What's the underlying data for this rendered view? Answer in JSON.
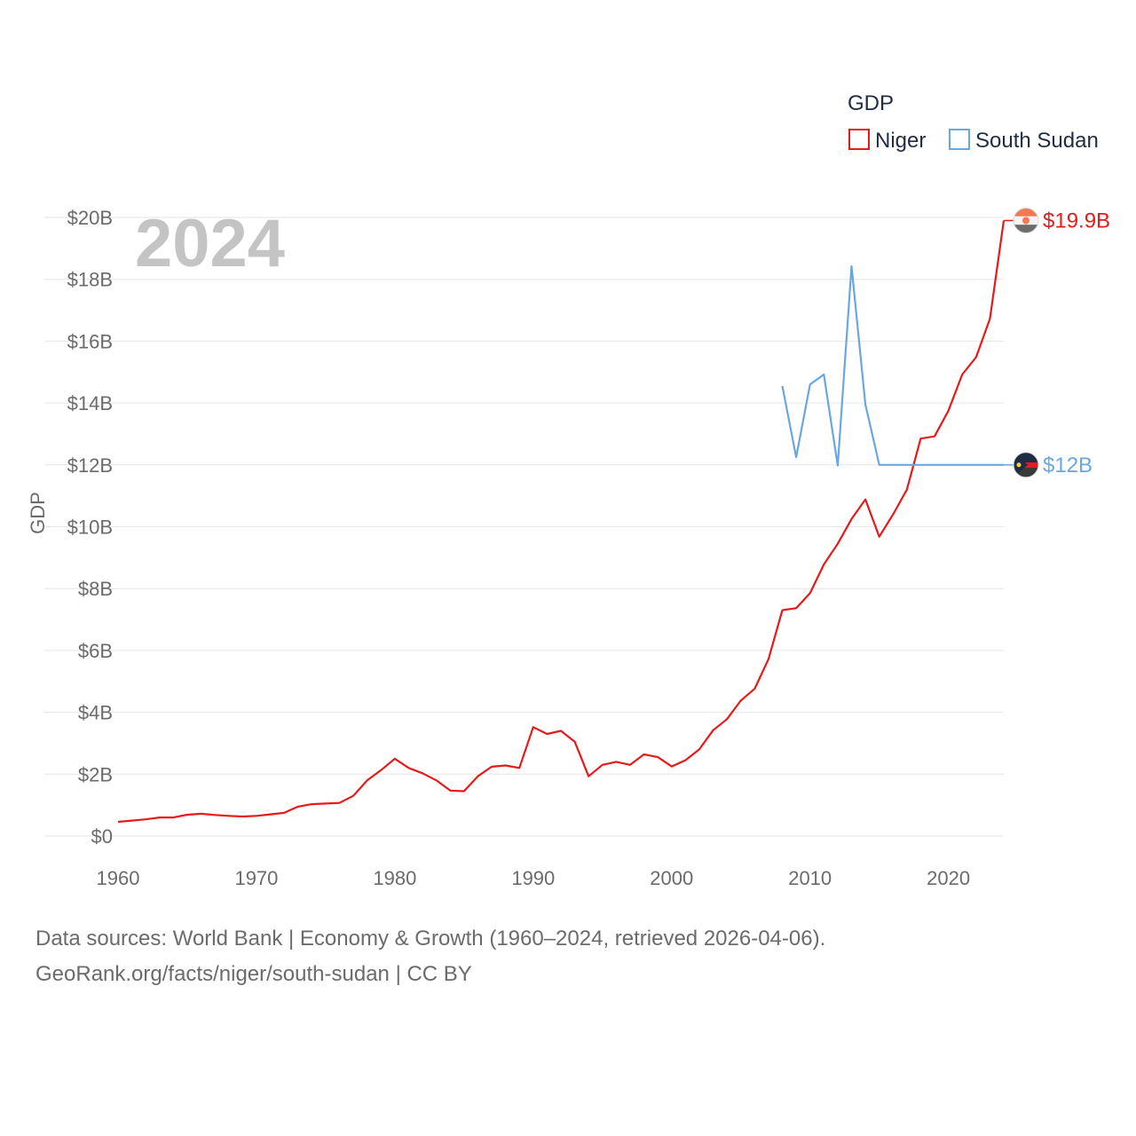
{
  "chart_data": {
    "type": "line",
    "ylabel": "GDP",
    "legend_title": "GDP",
    "legend_position": "top-right",
    "year_label": "2024",
    "ylim": [
      0,
      20000000000
    ],
    "xlim": [
      1960,
      2024
    ],
    "y_ticks": [
      {
        "value": 0,
        "label": "$0"
      },
      {
        "value": 2000000000,
        "label": "$2B"
      },
      {
        "value": 4000000000,
        "label": "$4B"
      },
      {
        "value": 6000000000,
        "label": "$6B"
      },
      {
        "value": 8000000000,
        "label": "$8B"
      },
      {
        "value": 10000000000,
        "label": "$10B"
      },
      {
        "value": 12000000000,
        "label": "$12B"
      },
      {
        "value": 14000000000,
        "label": "$14B"
      },
      {
        "value": 16000000000,
        "label": "$16B"
      },
      {
        "value": 18000000000,
        "label": "$18B"
      },
      {
        "value": 20000000000,
        "label": "$20B"
      }
    ],
    "x_ticks": [
      {
        "value": 1960,
        "label": "1960"
      },
      {
        "value": 1970,
        "label": "1970"
      },
      {
        "value": 1980,
        "label": "1980"
      },
      {
        "value": 1990,
        "label": "1990"
      },
      {
        "value": 2000,
        "label": "2000"
      },
      {
        "value": 2010,
        "label": "2010"
      },
      {
        "value": 2020,
        "label": "2020"
      }
    ],
    "series": [
      {
        "name": "Niger",
        "color": "#e8191b",
        "end_label": "$19.9B",
        "flag": "niger-flag",
        "points": [
          [
            1960,
            0.46
          ],
          [
            1961,
            0.5
          ],
          [
            1962,
            0.54
          ],
          [
            1963,
            0.6
          ],
          [
            1964,
            0.6
          ],
          [
            1965,
            0.69
          ],
          [
            1966,
            0.72
          ],
          [
            1967,
            0.68
          ],
          [
            1968,
            0.65
          ],
          [
            1969,
            0.63
          ],
          [
            1970,
            0.65
          ],
          [
            1971,
            0.7
          ],
          [
            1972,
            0.75
          ],
          [
            1973,
            0.95
          ],
          [
            1974,
            1.03
          ],
          [
            1975,
            1.05
          ],
          [
            1976,
            1.07
          ],
          [
            1977,
            1.3
          ],
          [
            1978,
            1.8
          ],
          [
            1979,
            2.13
          ],
          [
            1980,
            2.5
          ],
          [
            1981,
            2.2
          ],
          [
            1982,
            2.03
          ],
          [
            1983,
            1.8
          ],
          [
            1984,
            1.47
          ],
          [
            1985,
            1.45
          ],
          [
            1986,
            1.93
          ],
          [
            1987,
            2.24
          ],
          [
            1988,
            2.28
          ],
          [
            1989,
            2.2
          ],
          [
            1990,
            3.52
          ],
          [
            1991,
            3.3
          ],
          [
            1992,
            3.4
          ],
          [
            1993,
            3.05
          ],
          [
            1994,
            1.93
          ],
          [
            1995,
            2.3
          ],
          [
            1996,
            2.4
          ],
          [
            1997,
            2.3
          ],
          [
            1998,
            2.64
          ],
          [
            1999,
            2.55
          ],
          [
            2000,
            2.25
          ],
          [
            2001,
            2.45
          ],
          [
            2002,
            2.8
          ],
          [
            2003,
            3.42
          ],
          [
            2004,
            3.78
          ],
          [
            2005,
            4.38
          ],
          [
            2006,
            4.76
          ],
          [
            2007,
            5.72
          ],
          [
            2008,
            7.3
          ],
          [
            2009,
            7.37
          ],
          [
            2010,
            7.85
          ],
          [
            2011,
            8.78
          ],
          [
            2012,
            9.45
          ],
          [
            2013,
            10.25
          ],
          [
            2014,
            10.88
          ],
          [
            2015,
            9.68
          ],
          [
            2016,
            10.4
          ],
          [
            2017,
            11.2
          ],
          [
            2018,
            12.85
          ],
          [
            2019,
            12.92
          ],
          [
            2020,
            13.75
          ],
          [
            2021,
            14.92
          ],
          [
            2022,
            15.48
          ],
          [
            2023,
            16.72
          ],
          [
            2024,
            19.9
          ]
        ]
      },
      {
        "name": "South Sudan",
        "color": "#6aa6e2",
        "end_label": "$12B",
        "flag": "south-sudan-flag",
        "points": [
          [
            2008,
            14.55
          ],
          [
            2009,
            12.25
          ],
          [
            2010,
            14.6
          ],
          [
            2011,
            14.92
          ],
          [
            2012,
            11.98
          ],
          [
            2013,
            18.42
          ],
          [
            2014,
            13.95
          ],
          [
            2015,
            12.0
          ],
          [
            2016,
            12.0
          ],
          [
            2017,
            12.0
          ],
          [
            2018,
            12.0
          ],
          [
            2019,
            12.0
          ],
          [
            2020,
            12.0
          ],
          [
            2021,
            12.0
          ],
          [
            2022,
            12.0
          ],
          [
            2023,
            12.0
          ],
          [
            2024,
            12.0
          ]
        ],
        "unit_note": "values in billions USD"
      }
    ]
  },
  "footer": {
    "line1": "Data sources: World Bank | Economy & Growth (1960–2024, retrieved 2026-04-06).",
    "line2": "GeoRank.org/facts/niger/south-sudan | CC BY"
  }
}
